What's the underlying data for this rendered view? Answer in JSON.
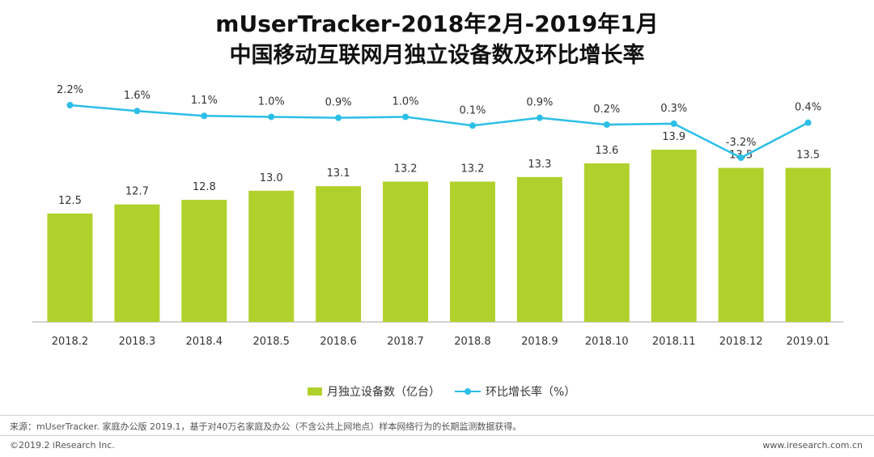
{
  "title_line1": "mUserTracker-2018年2月-2019年1月",
  "title_line2": "中国移动互联网月独立设备数及环比增长率",
  "colors": {
    "bar": "#b0d12c",
    "line": "#2bbfe6",
    "text": "#333333",
    "axis": "#999999"
  },
  "chart_data": {
    "type": "bar",
    "categories": [
      "2018.2",
      "2018.3",
      "2018.4",
      "2018.5",
      "2018.6",
      "2018.7",
      "2018.8",
      "2018.9",
      "2018.10",
      "2018.11",
      "2018.12",
      "2019.01"
    ],
    "series": [
      {
        "name": "月独立设备数（亿台）",
        "type": "bar",
        "values": [
          12.5,
          12.7,
          12.8,
          13.0,
          13.1,
          13.2,
          13.2,
          13.3,
          13.6,
          13.9,
          13.5,
          13.5
        ],
        "labels": [
          "12.5",
          "12.7",
          "12.8",
          "13.0",
          "13.1",
          "13.2",
          "13.2",
          "13.3",
          "13.6",
          "13.9",
          "13.5",
          "13.5"
        ]
      },
      {
        "name": "环比增长率（%）",
        "type": "line",
        "values": [
          2.2,
          1.6,
          1.1,
          1.0,
          0.9,
          1.0,
          0.1,
          0.9,
          0.2,
          0.3,
          -3.2,
          0.4
        ],
        "labels": [
          "2.2%",
          "1.6%",
          "1.1%",
          "1.0%",
          "0.9%",
          "1.0%",
          "0.1%",
          "0.9%",
          "0.2%",
          "0.3%",
          "-3.2%",
          "0.4%"
        ]
      }
    ],
    "title": "中国移动互联网月独立设备数及环比增长率",
    "legend_position": "bottom"
  },
  "legend": {
    "bar_label": "月独立设备数（亿台）",
    "line_label": "环比增长率（%）"
  },
  "footer": {
    "source": "来源：mUserTracker. 家庭办公版 2019.1，基于对40万名家庭及办公（不含公共上网地点）样本网络行为的长期监测数据获得。",
    "copyright": "©2019.2 iResearch Inc.",
    "website": "www.iresearch.com.cn"
  }
}
